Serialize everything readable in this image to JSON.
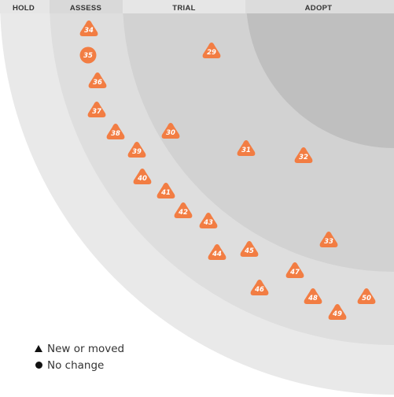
{
  "rings": [
    {
      "id": "hold",
      "label": "HOLD",
      "color": "#e9e9e9"
    },
    {
      "id": "assess",
      "label": "ASSESS",
      "color": "#dedede"
    },
    {
      "id": "trial",
      "label": "TRIAL",
      "color": "#d2d2d2"
    },
    {
      "id": "adopt",
      "label": "ADOPT",
      "color": "#bfbfbf"
    }
  ],
  "blip_color": "#f27d43",
  "blips": [
    {
      "n": "29",
      "shape": "triangle"
    },
    {
      "n": "30",
      "shape": "triangle"
    },
    {
      "n": "31",
      "shape": "triangle"
    },
    {
      "n": "32",
      "shape": "triangle"
    },
    {
      "n": "33",
      "shape": "triangle"
    },
    {
      "n": "34",
      "shape": "triangle"
    },
    {
      "n": "35",
      "shape": "circle"
    },
    {
      "n": "36",
      "shape": "triangle"
    },
    {
      "n": "37",
      "shape": "triangle"
    },
    {
      "n": "38",
      "shape": "triangle"
    },
    {
      "n": "39",
      "shape": "triangle"
    },
    {
      "n": "40",
      "shape": "triangle"
    },
    {
      "n": "41",
      "shape": "triangle"
    },
    {
      "n": "42",
      "shape": "triangle"
    },
    {
      "n": "43",
      "shape": "triangle"
    },
    {
      "n": "44",
      "shape": "triangle"
    },
    {
      "n": "45",
      "shape": "triangle"
    },
    {
      "n": "46",
      "shape": "triangle"
    },
    {
      "n": "47",
      "shape": "triangle"
    },
    {
      "n": "48",
      "shape": "triangle"
    },
    {
      "n": "49",
      "shape": "triangle"
    },
    {
      "n": "50",
      "shape": "triangle"
    }
  ],
  "legend": {
    "new_or_moved": "New or moved",
    "no_change": "No change"
  }
}
